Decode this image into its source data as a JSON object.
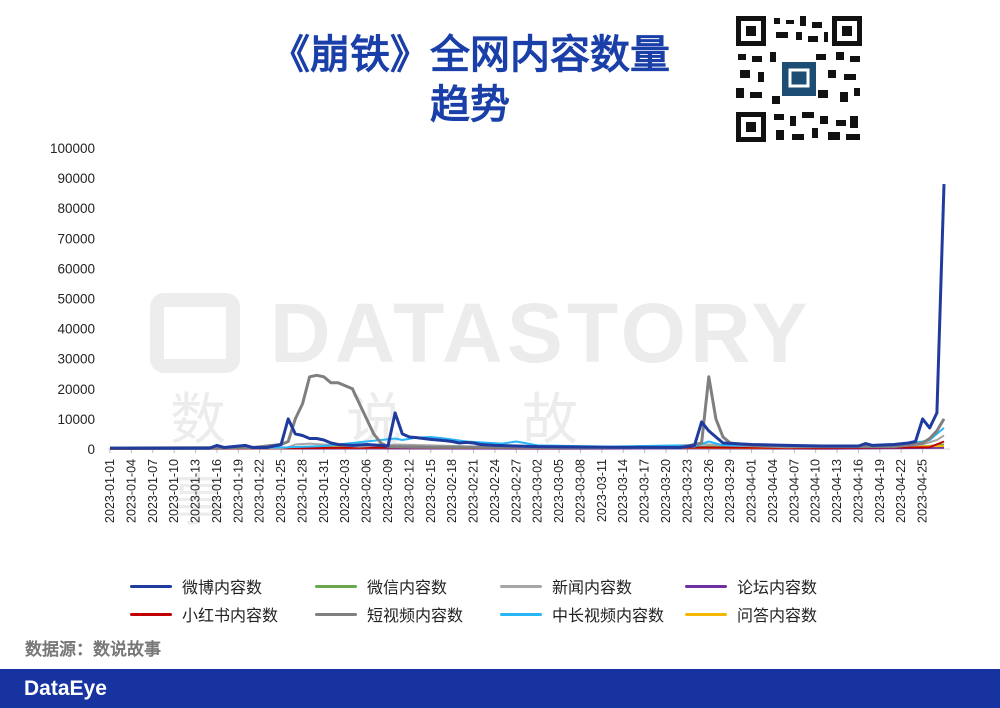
{
  "title_line1": "《崩铁》全网内容数量",
  "title_line2": "趋势",
  "watermark": {
    "text": "DATASTORY",
    "cn": "数说故事"
  },
  "source": "数据源：数说故事",
  "footer": {
    "logo": "DataEye"
  },
  "colors": {
    "weibo": "#1f3b9e",
    "wechat": "#6aa84f",
    "news": "#a6a6a6",
    "forum": "#7030a0",
    "xiaohongshu": "#c00000",
    "short_video": "#7f7f7f",
    "long_video": "#29b6f6",
    "qa": "#f5b800",
    "title": "#1a3fa8",
    "footer_bar": "#1633a0"
  },
  "chart_data": {
    "type": "line",
    "ylim": [
      0,
      100000
    ],
    "yticks": [
      "100000",
      "90000",
      "80000",
      "70000",
      "60000",
      "50000",
      "40000",
      "30000",
      "20000",
      "10000",
      "0"
    ],
    "xticks": [
      "2023-01-01",
      "2023-01-04",
      "2023-01-07",
      "2023-01-10",
      "2023-01-13",
      "2023-01-16",
      "2023-01-19",
      "2023-01-22",
      "2023-01-25",
      "2023-01-28",
      "2023-01-31",
      "2023-02-03",
      "2023-02-06",
      "2023-02-09",
      "2023-02-12",
      "2023-02-15",
      "2023-02-18",
      "2023-02-21",
      "2023-02-24",
      "2023-02-27",
      "2023-03-02",
      "2023-03-05",
      "2023-03-08",
      "2023-03-11",
      "2023-03-14",
      "2023-03-17",
      "2023-03-20",
      "2023-03-23",
      "2023-03-26",
      "2023-03-29",
      "2023-04-01",
      "2023-04-04",
      "2023-04-07",
      "2023-04-10",
      "2023-04-13",
      "2023-04-16",
      "2023-04-19",
      "2023-04-22",
      "2023-04-25"
    ],
    "x_start": "2023-01-01",
    "num_points": 117,
    "series": [
      {
        "name": "微博内容数",
        "key": "weibo",
        "width": 3,
        "points": [
          [
            0,
            300
          ],
          [
            14,
            300
          ],
          [
            15,
            1200
          ],
          [
            16,
            500
          ],
          [
            19,
            1200
          ],
          [
            20,
            500
          ],
          [
            22,
            500
          ],
          [
            24,
            1500
          ],
          [
            25,
            10000
          ],
          [
            26,
            5000
          ],
          [
            27,
            4500
          ],
          [
            28,
            3500
          ],
          [
            29,
            3500
          ],
          [
            30,
            3000
          ],
          [
            31,
            2000
          ],
          [
            32,
            1500
          ],
          [
            34,
            1200
          ],
          [
            36,
            1500
          ],
          [
            38,
            1200
          ],
          [
            39,
            1000
          ],
          [
            40,
            12000
          ],
          [
            41,
            5000
          ],
          [
            42,
            4000
          ],
          [
            43,
            3800
          ],
          [
            44,
            3500
          ],
          [
            45,
            3200
          ],
          [
            46,
            3000
          ],
          [
            47,
            2800
          ],
          [
            48,
            2500
          ],
          [
            49,
            2000
          ],
          [
            50,
            2200
          ],
          [
            51,
            2000
          ],
          [
            52,
            1500
          ],
          [
            54,
            1200
          ],
          [
            60,
            800
          ],
          [
            70,
            600
          ],
          [
            80,
            500
          ],
          [
            82,
            1200
          ],
          [
            83,
            9000
          ],
          [
            84,
            6000
          ],
          [
            85,
            4000
          ],
          [
            86,
            2000
          ],
          [
            90,
            1500
          ],
          [
            95,
            1200
          ],
          [
            100,
            1000
          ],
          [
            105,
            1000
          ],
          [
            106,
            1800
          ],
          [
            107,
            1200
          ],
          [
            110,
            1500
          ],
          [
            112,
            2000
          ],
          [
            113,
            2500
          ],
          [
            114,
            10000
          ],
          [
            115,
            7000
          ],
          [
            116,
            12000
          ],
          [
            117,
            88000
          ]
        ]
      },
      {
        "name": "微信内容数",
        "key": "wechat",
        "width": 2,
        "points": [
          [
            0,
            0
          ],
          [
            24,
            200
          ],
          [
            25,
            500
          ],
          [
            40,
            800
          ],
          [
            50,
            500
          ],
          [
            80,
            400
          ],
          [
            84,
            800
          ],
          [
            100,
            400
          ],
          [
            113,
            600
          ],
          [
            117,
            1500
          ]
        ]
      },
      {
        "name": "新闻内容数",
        "key": "news",
        "width": 2,
        "points": [
          [
            0,
            200
          ],
          [
            24,
            300
          ],
          [
            25,
            600
          ],
          [
            26,
            1500
          ],
          [
            28,
            1800
          ],
          [
            32,
            1200
          ],
          [
            35,
            800
          ],
          [
            40,
            1500
          ],
          [
            45,
            1200
          ],
          [
            55,
            600
          ],
          [
            70,
            500
          ],
          [
            84,
            1500
          ],
          [
            86,
            1200
          ],
          [
            95,
            600
          ],
          [
            110,
            700
          ],
          [
            114,
            1500
          ],
          [
            116,
            3000
          ],
          [
            117,
            4500
          ]
        ]
      },
      {
        "name": "论坛内容数",
        "key": "forum",
        "width": 2,
        "points": [
          [
            0,
            50
          ],
          [
            40,
            150
          ],
          [
            60,
            100
          ],
          [
            84,
            200
          ],
          [
            100,
            100
          ],
          [
            117,
            400
          ]
        ]
      },
      {
        "name": "小红书内容数",
        "key": "xiaohongshu",
        "width": 2,
        "points": [
          [
            0,
            100
          ],
          [
            25,
            300
          ],
          [
            40,
            500
          ],
          [
            60,
            300
          ],
          [
            84,
            500
          ],
          [
            100,
            300
          ],
          [
            115,
            600
          ],
          [
            117,
            2500
          ]
        ]
      },
      {
        "name": "短视频内容数",
        "key": "short_video",
        "width": 3,
        "points": [
          [
            0,
            300
          ],
          [
            20,
            500
          ],
          [
            24,
            1500
          ],
          [
            25,
            2500
          ],
          [
            26,
            10000
          ],
          [
            27,
            15000
          ],
          [
            28,
            24000
          ],
          [
            29,
            24500
          ],
          [
            30,
            24000
          ],
          [
            31,
            22000
          ],
          [
            32,
            22000
          ],
          [
            33,
            21000
          ],
          [
            34,
            20000
          ],
          [
            35,
            15000
          ],
          [
            36,
            10000
          ],
          [
            37,
            5000
          ],
          [
            38,
            2000
          ],
          [
            39,
            800
          ],
          [
            45,
            600
          ],
          [
            60,
            500
          ],
          [
            80,
            500
          ],
          [
            83,
            2000
          ],
          [
            84,
            24000
          ],
          [
            85,
            10000
          ],
          [
            86,
            4000
          ],
          [
            87,
            2000
          ],
          [
            90,
            1200
          ],
          [
            100,
            800
          ],
          [
            110,
            800
          ],
          [
            114,
            2000
          ],
          [
            115,
            3500
          ],
          [
            116,
            6000
          ],
          [
            117,
            10000
          ]
        ]
      },
      {
        "name": "中长视频内容数",
        "key": "long_video",
        "width": 2,
        "points": [
          [
            0,
            200
          ],
          [
            25,
            600
          ],
          [
            30,
            1000
          ],
          [
            40,
            3500
          ],
          [
            41,
            3000
          ],
          [
            43,
            3800
          ],
          [
            45,
            4000
          ],
          [
            47,
            3500
          ],
          [
            50,
            2500
          ],
          [
            55,
            1800
          ],
          [
            57,
            2500
          ],
          [
            60,
            1200
          ],
          [
            70,
            800
          ],
          [
            80,
            1200
          ],
          [
            82,
            800
          ],
          [
            84,
            2500
          ],
          [
            86,
            1200
          ],
          [
            95,
            1000
          ],
          [
            105,
            800
          ],
          [
            110,
            1200
          ],
          [
            114,
            2500
          ],
          [
            115,
            3000
          ],
          [
            116,
            5000
          ],
          [
            117,
            7000
          ]
        ]
      },
      {
        "name": "问答内容数",
        "key": "qa",
        "width": 2,
        "points": [
          [
            0,
            100
          ],
          [
            25,
            300
          ],
          [
            40,
            500
          ],
          [
            60,
            300
          ],
          [
            84,
            400
          ],
          [
            100,
            300
          ],
          [
            117,
            1000
          ]
        ]
      }
    ]
  }
}
